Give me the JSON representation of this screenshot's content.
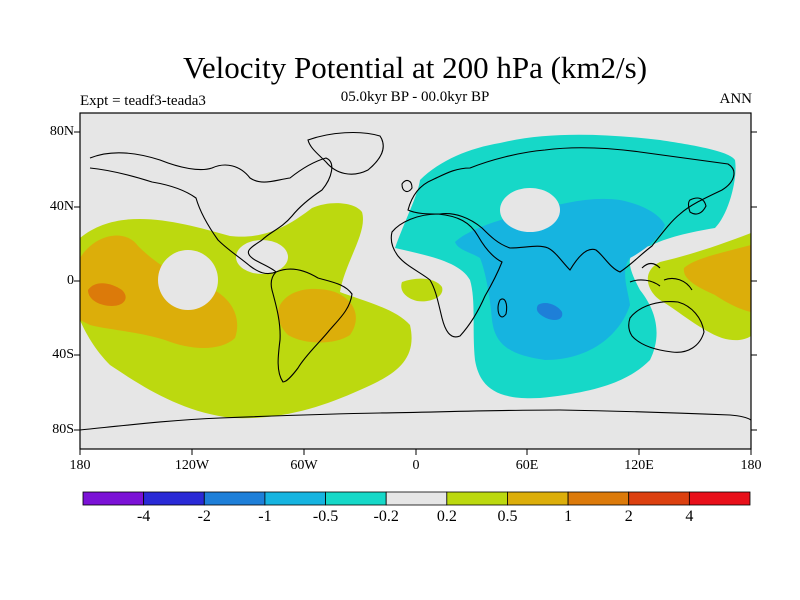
{
  "title": "Velocity Potential at 200 hPa (km2/s)",
  "subtitle": "05.0kyr BP - 00.0kyr BP",
  "experiment": "Expt = teadf3-teada3",
  "season": "ANN",
  "axes": {
    "lat_labels": [
      "80N",
      "40N",
      "0",
      "40S",
      "80S"
    ],
    "lon_labels": [
      "180",
      "120W",
      "60W",
      "0",
      "60E",
      "120E",
      "180"
    ]
  },
  "colorbar": {
    "labels": [
      "-4",
      "-2",
      "-1",
      "-0.5",
      "-0.2",
      "0.2",
      "0.5",
      "1",
      "2",
      "4"
    ],
    "colors": [
      "#7b12d6",
      "#2a2ad6",
      "#1e7fd8",
      "#16b4e0",
      "#16d8c8",
      "#e6e6e6",
      "#bcd90f",
      "#dcae0a",
      "#dc7a0a",
      "#dc4010",
      "#e8101a"
    ]
  },
  "chart_data": {
    "type": "heatmap",
    "title": "Velocity Potential at 200 hPa (km2/s)",
    "subtitle": "05.0kyr BP - 00.0kyr BP",
    "variable": "Velocity Potential",
    "level": "200 hPa",
    "units": "km2/s",
    "x_range": [
      -180,
      180
    ],
    "y_range": [
      -90,
      90
    ],
    "contour_levels": [
      -4,
      -2,
      -1,
      -0.5,
      -0.2,
      0.2,
      0.5,
      1,
      2,
      4
    ],
    "regions": [
      {
        "name": "Eurasia-Africa-Indian Ocean",
        "range": "-0.5 to -0.2"
      },
      {
        "name": "Central Indian Ocean",
        "range": "-1 to -0.5"
      },
      {
        "name": "Tropical Pacific (central)",
        "range": "0.2 to 0.5"
      },
      {
        "name": "Central-east Pacific core",
        "range": "1 to 2"
      },
      {
        "name": "South America / South Atlantic",
        "range": "0.5 to 1"
      },
      {
        "name": "Western tropical Pacific",
        "range": "0.5 to 1"
      }
    ]
  }
}
